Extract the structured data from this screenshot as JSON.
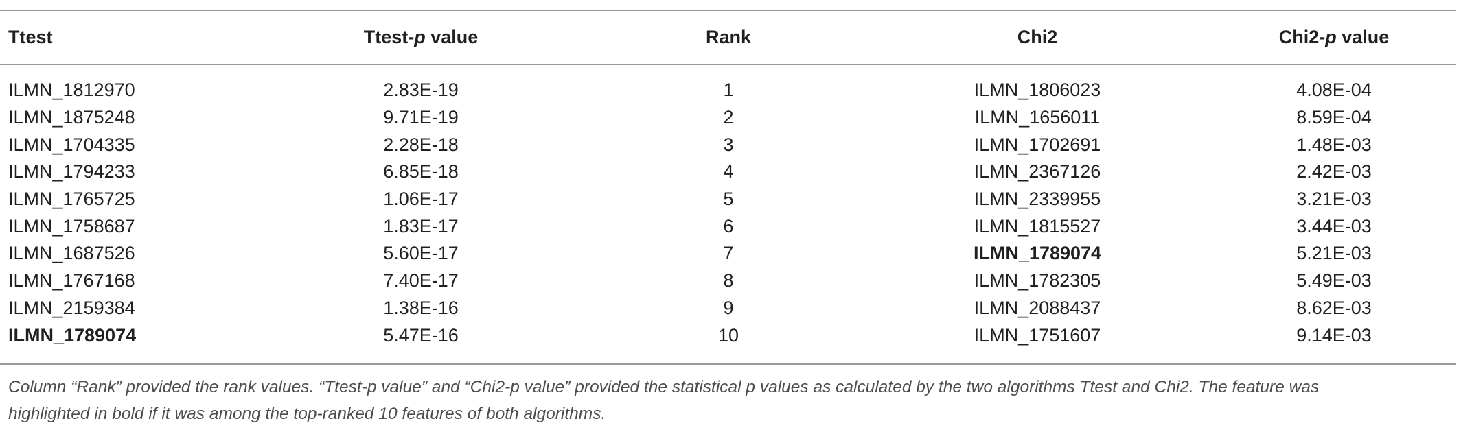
{
  "table": {
    "headers": {
      "ttest": "Ttest",
      "ttest_p_prefix": "Ttest-",
      "ttest_p_italic": "p",
      "ttest_p_suffix": " value",
      "rank": "Rank",
      "chi2": "Chi2",
      "chi2_p_prefix": "Chi2-",
      "chi2_p_italic": "p",
      "chi2_p_suffix": " value"
    },
    "rows": [
      {
        "ttest": "ILMN_1812970",
        "ttest_p": "2.83E-19",
        "rank": "1",
        "chi2": "ILMN_1806023",
        "chi2_p": "4.08E-04",
        "ttest_bold": false,
        "chi2_bold": false
      },
      {
        "ttest": "ILMN_1875248",
        "ttest_p": "9.71E-19",
        "rank": "2",
        "chi2": "ILMN_1656011",
        "chi2_p": "8.59E-04",
        "ttest_bold": false,
        "chi2_bold": false
      },
      {
        "ttest": "ILMN_1704335",
        "ttest_p": "2.28E-18",
        "rank": "3",
        "chi2": "ILMN_1702691",
        "chi2_p": "1.48E-03",
        "ttest_bold": false,
        "chi2_bold": false
      },
      {
        "ttest": "ILMN_1794233",
        "ttest_p": "6.85E-18",
        "rank": "4",
        "chi2": "ILMN_2367126",
        "chi2_p": "2.42E-03",
        "ttest_bold": false,
        "chi2_bold": false
      },
      {
        "ttest": "ILMN_1765725",
        "ttest_p": "1.06E-17",
        "rank": "5",
        "chi2": "ILMN_2339955",
        "chi2_p": "3.21E-03",
        "ttest_bold": false,
        "chi2_bold": false
      },
      {
        "ttest": "ILMN_1758687",
        "ttest_p": "1.83E-17",
        "rank": "6",
        "chi2": "ILMN_1815527",
        "chi2_p": "3.44E-03",
        "ttest_bold": false,
        "chi2_bold": false
      },
      {
        "ttest": "ILMN_1687526",
        "ttest_p": "5.60E-17",
        "rank": "7",
        "chi2": "ILMN_1789074",
        "chi2_p": "5.21E-03",
        "ttest_bold": false,
        "chi2_bold": true
      },
      {
        "ttest": "ILMN_1767168",
        "ttest_p": "7.40E-17",
        "rank": "8",
        "chi2": "ILMN_1782305",
        "chi2_p": "5.49E-03",
        "ttest_bold": false,
        "chi2_bold": false
      },
      {
        "ttest": "ILMN_2159384",
        "ttest_p": "1.38E-16",
        "rank": "9",
        "chi2": "ILMN_2088437",
        "chi2_p": "8.62E-03",
        "ttest_bold": false,
        "chi2_bold": false
      },
      {
        "ttest": "ILMN_1789074",
        "ttest_p": "5.47E-16",
        "rank": "10",
        "chi2": "ILMN_1751607",
        "chi2_p": "9.14E-03",
        "ttest_bold": true,
        "chi2_bold": false
      }
    ]
  },
  "caption": {
    "line1": "Column “Rank” provided the rank values. “Ttest-p value” and “Chi2-p value” provided the statistical p values as calculated by the two algorithms Ttest and Chi2. The feature was",
    "line2": "highlighted in bold if it was among the top-ranked 10 features of both algorithms."
  }
}
